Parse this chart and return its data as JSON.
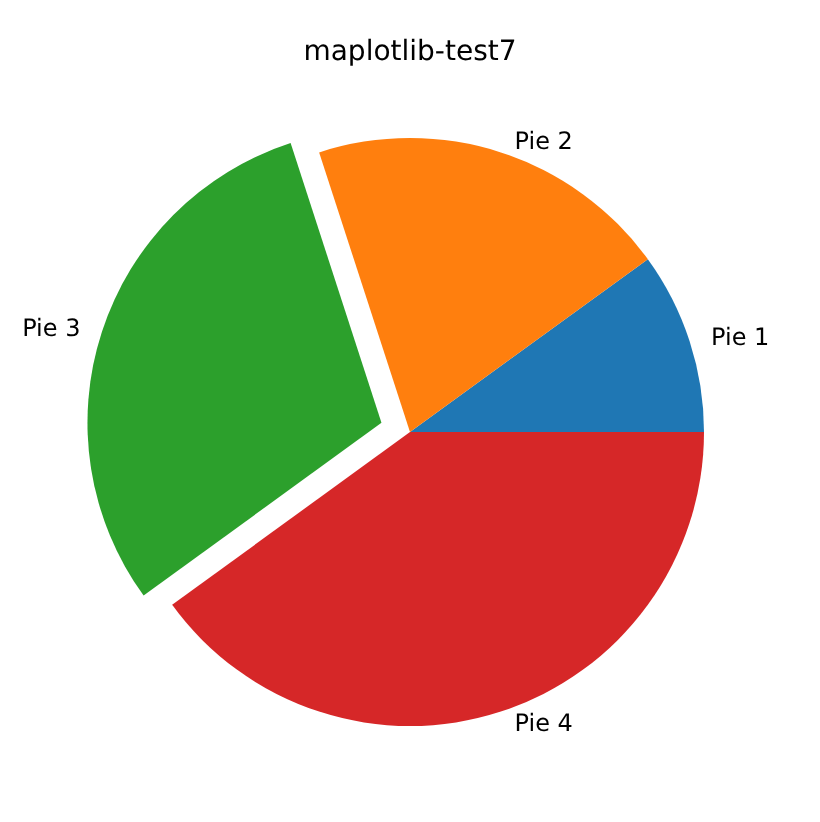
{
  "chart_data": {
    "type": "pie",
    "title": "maplotlib-test7",
    "categories": [
      "Pie 1",
      "Pie 2",
      "Pie 3",
      "Pie 4"
    ],
    "values": [
      10,
      20,
      30,
      40
    ],
    "colors": [
      "#1f77b4",
      "#ff7f0e",
      "#2ca02c",
      "#d62728"
    ]
  }
}
